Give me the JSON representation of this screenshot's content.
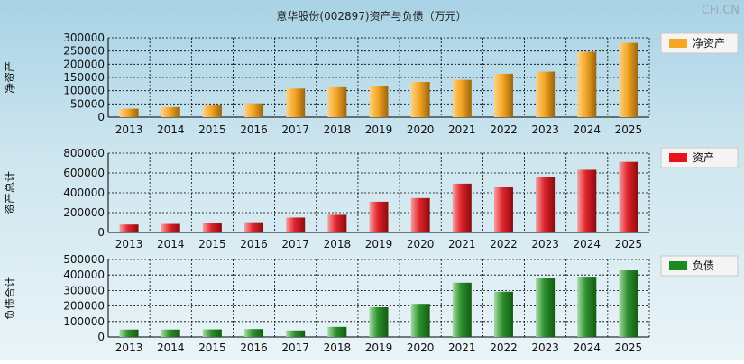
{
  "title": "意华股份(002897)资产与负债（万元）",
  "watermark": "CFi.CN",
  "chart_data": [
    {
      "type": "bar",
      "id": "net-assets",
      "ylabel": "净资产",
      "legend": "净资产",
      "color": "#f5a623",
      "ylim": [
        0,
        300000
      ],
      "yticks": [
        0,
        50000,
        100000,
        150000,
        200000,
        250000,
        300000
      ],
      "categories": [
        "2013",
        "2014",
        "2015",
        "2016",
        "2017",
        "2018",
        "2019",
        "2020",
        "2021",
        "2022",
        "2023",
        "2024",
        "2025"
      ],
      "values": [
        32000,
        38000,
        44000,
        52000,
        108000,
        113000,
        117000,
        133000,
        141000,
        164000,
        172000,
        247000,
        281000
      ]
    },
    {
      "type": "bar",
      "id": "total-assets",
      "ylabel": "资产总计",
      "legend": "资产",
      "color": "#e8121b",
      "ylim": [
        0,
        800000
      ],
      "yticks": [
        0,
        200000,
        400000,
        600000,
        800000
      ],
      "categories": [
        "2013",
        "2014",
        "2015",
        "2016",
        "2017",
        "2018",
        "2019",
        "2020",
        "2021",
        "2022",
        "2023",
        "2024",
        "2025"
      ],
      "values": [
        80000,
        86000,
        93000,
        103000,
        150000,
        178000,
        310000,
        347000,
        492000,
        460000,
        560000,
        632000,
        712000
      ]
    },
    {
      "type": "bar",
      "id": "total-liabilities",
      "ylabel": "负债合计",
      "legend": "负债",
      "color": "#1d8a1d",
      "ylim": [
        0,
        500000
      ],
      "yticks": [
        0,
        100000,
        200000,
        300000,
        400000,
        500000
      ],
      "categories": [
        "2013",
        "2014",
        "2015",
        "2016",
        "2017",
        "2018",
        "2019",
        "2020",
        "2021",
        "2022",
        "2023",
        "2024",
        "2025"
      ],
      "values": [
        48000,
        48000,
        49000,
        51000,
        42000,
        65000,
        192000,
        214000,
        350000,
        292000,
        383000,
        389000,
        430000
      ]
    }
  ]
}
